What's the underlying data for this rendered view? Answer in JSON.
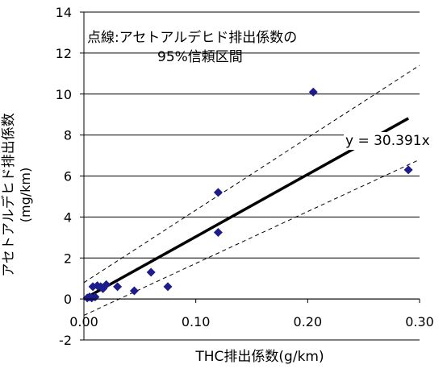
{
  "chart_data": {
    "type": "scatter",
    "title": "",
    "xlabel": "THC排出係数(g/km)",
    "ylabel": "アセトアルデヒド排出係数",
    "ylabel_unit": "(mg/km)",
    "xlim": [
      0.0,
      0.3
    ],
    "ylim": [
      -2,
      14
    ],
    "x_ticks": [
      "0.00",
      "0.10",
      "0.20",
      "0.30"
    ],
    "y_ticks": [
      "-2",
      "0",
      "2",
      "4",
      "6",
      "8",
      "10",
      "12",
      "14"
    ],
    "y_gridlines": [
      0,
      2,
      4,
      6,
      8,
      10,
      12,
      14
    ],
    "points": [
      {
        "x": 0.003,
        "y": 0.05
      },
      {
        "x": 0.005,
        "y": 0.1
      },
      {
        "x": 0.007,
        "y": 0.05
      },
      {
        "x": 0.008,
        "y": 0.6
      },
      {
        "x": 0.01,
        "y": 0.1
      },
      {
        "x": 0.012,
        "y": 0.65
      },
      {
        "x": 0.015,
        "y": 0.6
      },
      {
        "x": 0.017,
        "y": 0.5
      },
      {
        "x": 0.02,
        "y": 0.7
      },
      {
        "x": 0.03,
        "y": 0.6
      },
      {
        "x": 0.045,
        "y": 0.4
      },
      {
        "x": 0.06,
        "y": 1.3
      },
      {
        "x": 0.075,
        "y": 0.6
      },
      {
        "x": 0.12,
        "y": 5.2
      },
      {
        "x": 0.12,
        "y": 3.25
      },
      {
        "x": 0.205,
        "y": 10.1
      },
      {
        "x": 0.29,
        "y": 6.3
      }
    ],
    "fit": {
      "slope": 30.391,
      "x_range": [
        0.0,
        0.29
      ],
      "label": "y = 30.391x"
    },
    "confidence_band": {
      "upper": [
        [
          0.0,
          0.8
        ],
        [
          0.3,
          11.4
        ]
      ],
      "lower": [
        [
          0.0,
          -0.8
        ],
        [
          0.3,
          6.8
        ]
      ]
    },
    "annotation": {
      "line1": "点線:アセトアルデヒド排出係数の",
      "line2": "95%信頼区間"
    },
    "colors": {
      "marker": "#1c1c8c",
      "fit_line": "#000000",
      "grid": "#000000"
    }
  }
}
